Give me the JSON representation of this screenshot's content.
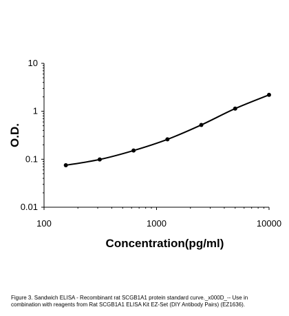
{
  "chart_data": {
    "type": "line",
    "xlabel": "Concentration(pg/ml)",
    "ylabel": "O.D.",
    "xscale": "log",
    "yscale": "log",
    "xlim": [
      100,
      10000
    ],
    "ylim": [
      0.01,
      10
    ],
    "x_ticks": [
      "100",
      "1000",
      "10000"
    ],
    "y_ticks": [
      "0.01",
      "0.1",
      "1",
      "10"
    ],
    "grid": false,
    "legend": "none",
    "series": [
      {
        "x": [
          156.25,
          312.5,
          625,
          1250,
          2500,
          5000,
          10000
        ],
        "y": [
          0.075,
          0.099,
          0.152,
          0.26,
          0.52,
          1.14,
          2.2
        ],
        "color": "#000000",
        "markers": true
      }
    ]
  },
  "caption": {
    "line1": "Figure 3. Sandwich ELISA - Recombinant rat SCGB1A1 protein standard curve._x000D_-- Use in",
    "line2": "combination with reagents from Rat SCGB1A1 ELISA Kit EZ-Set (DIY Antibody Pairs) (EZ1636)."
  }
}
